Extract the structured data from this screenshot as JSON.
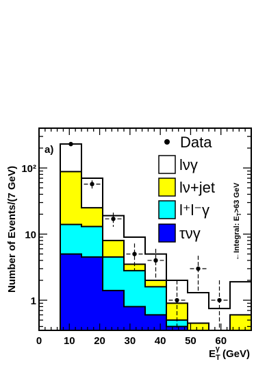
{
  "chart_data": {
    "type": "histogram",
    "panel_label": "a)",
    "xlabel": {
      "main": "E",
      "sup": "γ",
      "sub": "T",
      "rest": " (GeV)"
    },
    "ylabel": "Number of Events/(7 GeV)",
    "xlim": [
      0,
      70
    ],
    "ylim_log": [
      0.35,
      400
    ],
    "x_ticks": [
      "0",
      "10",
      "20",
      "30",
      "40",
      "50",
      "60"
    ],
    "y_ticks": [
      {
        "value": 1,
        "label": "1"
      },
      {
        "value": 10,
        "label": "10"
      },
      {
        "value": 100,
        "label": "10²"
      }
    ],
    "bin_edges": [
      7,
      14,
      21,
      28,
      35,
      42,
      49,
      56,
      63,
      70
    ],
    "series": [
      {
        "name": "lνγ",
        "color": "#ffffff",
        "stack_total": [
          230,
          70,
          19,
          9,
          5,
          2,
          1.3,
          0.75,
          1.9
        ]
      },
      {
        "name": "lν+jet",
        "color": "#ffff00",
        "stack_total": [
          88,
          25,
          8,
          3.5,
          2,
          0.9,
          0.45,
          0.3,
          0.6
        ]
      },
      {
        "name": "l⁺l⁻γ",
        "color": "#00ffff",
        "stack_total": [
          14,
          13,
          4.5,
          2.8,
          1.6,
          0.5,
          0.35,
          0.3,
          0.35
        ]
      },
      {
        "name": "τνγ",
        "color": "#0000ff",
        "stack_total": [
          5,
          4.5,
          1.4,
          0.8,
          0.6,
          0.4,
          0.35,
          0.3,
          0.35
        ]
      }
    ],
    "data_points": {
      "name": "Data",
      "x": [
        10.5,
        17.5,
        24.5,
        31.5,
        38.5,
        45.5,
        52.5,
        59.5
      ],
      "y": [
        230,
        57,
        17,
        5,
        4,
        1,
        3,
        1
      ],
      "err_up": [
        15,
        8,
        4.1,
        2.2,
        2,
        1,
        1.7,
        1
      ],
      "err_down": [
        15,
        8,
        4.1,
        2.2,
        2,
        0.64,
        1.7,
        0.64
      ]
    },
    "annotation": {
      "main": "←Integral: E",
      "sub": "T",
      "rest": ">63 GeV"
    },
    "legend": [
      {
        "label": "Data",
        "kind": "marker"
      },
      {
        "label": "lνγ",
        "kind": "box",
        "color": "#ffffff"
      },
      {
        "label": "lν+jet",
        "kind": "box",
        "color": "#ffff00"
      },
      {
        "label": "l⁺l⁻γ",
        "kind": "box",
        "color": "#00ffff"
      },
      {
        "label": "τνγ",
        "kind": "box",
        "color": "#0000ff"
      }
    ]
  }
}
